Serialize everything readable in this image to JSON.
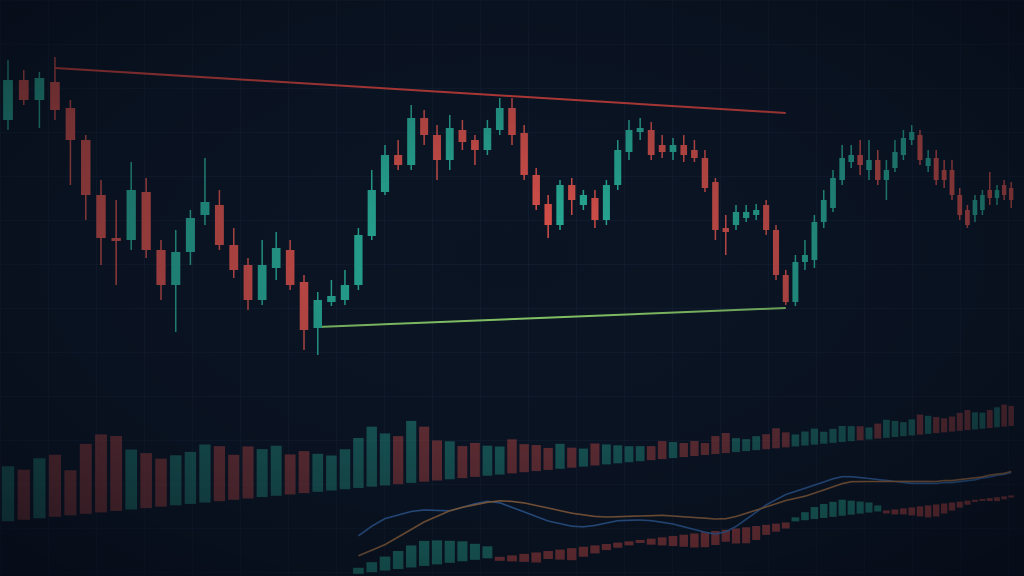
{
  "chart_data": {
    "type": "candlestick",
    "up_color": "#29b39b",
    "down_color": "#e0524a",
    "ylim": [
      0,
      360
    ],
    "open": [
      240,
      280,
      260,
      278,
      252,
      220,
      165,
      122,
      120,
      168,
      110,
      75,
      108,
      145,
      155,
      115,
      95,
      60,
      92,
      110,
      78,
      32,
      58,
      60,
      75,
      124,
      168,
      205,
      195,
      242,
      225,
      200,
      230,
      220,
      210,
      230,
      252,
      227,
      185,
      156,
      135,
      175,
      155,
      162,
      140,
      175,
      208,
      228,
      230,
      215,
      208,
      215,
      210,
      202,
      178,
      132,
      135,
      142,
      145,
      155,
      130,
      85,
      58,
      98,
      100,
      138,
      152,
      180,
      198,
      205,
      190,
      200,
      180,
      192,
      205,
      220,
      225,
      194,
      202,
      190,
      190,
      165,
      150,
      145,
      150,
      170,
      162,
      175,
      172
    ],
    "high": [
      300,
      290,
      288,
      303,
      260,
      225,
      180,
      160,
      198,
      182,
      120,
      130,
      150,
      202,
      170,
      132,
      102,
      120,
      128,
      120,
      85,
      68,
      80,
      90,
      132,
      190,
      215,
      220,
      255,
      250,
      235,
      245,
      240,
      225,
      240,
      262,
      262,
      235,
      192,
      165,
      180,
      182,
      170,
      170,
      180,
      220,
      240,
      242,
      238,
      225,
      222,
      225,
      220,
      210,
      182,
      145,
      155,
      155,
      156,
      160,
      135,
      90,
      105,
      120,
      145,
      170,
      190,
      215,
      215,
      220,
      220,
      210,
      200,
      220,
      230,
      235,
      230,
      210,
      210,
      200,
      200,
      172,
      155,
      165,
      170,
      188,
      175,
      180,
      178
    ],
    "low": [
      230,
      255,
      232,
      240,
      175,
      140,
      95,
      75,
      110,
      102,
      60,
      28,
      95,
      135,
      110,
      82,
      50,
      55,
      80,
      70,
      10,
      5,
      54,
      55,
      70,
      120,
      165,
      190,
      190,
      215,
      180,
      190,
      210,
      195,
      205,
      225,
      215,
      180,
      150,
      122,
      130,
      145,
      150,
      132,
      135,
      170,
      200,
      220,
      200,
      202,
      200,
      198,
      198,
      168,
      120,
      105,
      130,
      138,
      140,
      125,
      80,
      55,
      54,
      90,
      92,
      132,
      148,
      175,
      192,
      185,
      180,
      175,
      160,
      188,
      200,
      215,
      195,
      188,
      175,
      172,
      160,
      140,
      132,
      138,
      145,
      155,
      155,
      160,
      152
    ],
    "close": [
      280,
      260,
      282,
      250,
      220,
      165,
      122,
      119,
      170,
      110,
      75,
      108,
      142,
      158,
      115,
      90,
      60,
      95,
      112,
      75,
      30,
      60,
      64,
      75,
      125,
      170,
      205,
      195,
      242,
      225,
      200,
      232,
      218,
      210,
      232,
      252,
      225,
      185,
      155,
      135,
      175,
      160,
      165,
      140,
      175,
      210,
      230,
      232,
      205,
      208,
      215,
      205,
      202,
      172,
      130,
      128,
      148,
      148,
      150,
      130,
      85,
      58,
      98,
      105,
      138,
      160,
      182,
      202,
      205,
      195,
      200,
      180,
      190,
      208,
      222,
      228,
      200,
      202,
      180,
      180,
      165,
      145,
      135,
      160,
      165,
      162,
      170,
      165,
      160
    ],
    "volume": [
      55,
      50,
      60,
      62,
      45,
      70,
      78,
      75,
      60,
      55,
      48,
      50,
      52,
      58,
      55,
      45,
      52,
      48,
      50,
      40,
      42,
      38,
      35,
      40,
      50,
      60,
      52,
      48,
      62,
      55,
      40,
      38,
      32,
      34,
      30,
      28,
      34,
      28,
      26,
      22,
      25,
      20,
      18,
      22,
      20,
      18,
      16,
      15,
      14,
      18,
      16,
      14,
      15,
      12,
      18,
      20,
      14,
      12,
      14,
      15,
      20,
      15,
      12,
      14,
      16,
      12,
      14,
      16,
      15,
      14,
      12,
      15,
      18,
      16,
      14,
      16,
      20,
      18,
      16,
      14,
      15,
      18,
      20,
      17,
      16,
      18,
      20,
      22,
      20
    ],
    "trend_lines": [
      {
        "color": "#e8453c",
        "points": [
          [
            3,
            292
          ],
          [
            61,
            247
          ]
        ]
      },
      {
        "color": "#8fd36a",
        "points": [
          [
            21,
            33
          ],
          [
            61,
            52
          ]
        ]
      }
    ],
    "macd": {
      "macd_color": "#3f7fd0",
      "signal_color": "#d08a4a",
      "histogram": [
        null,
        null,
        null,
        null,
        null,
        null,
        null,
        null,
        null,
        null,
        null,
        null,
        null,
        null,
        null,
        null,
        null,
        null,
        null,
        null,
        null,
        null,
        null,
        null,
        6,
        10,
        14,
        18,
        22,
        25,
        24,
        22,
        20,
        16,
        12,
        -4,
        -6,
        -8,
        -10,
        -8,
        -10,
        -12,
        -10,
        -8,
        -6,
        -5,
        -4,
        -3,
        -6,
        -8,
        -10,
        -12,
        -14,
        -15,
        -14,
        -12,
        -15,
        -16,
        -14,
        -10,
        -8,
        -6,
        4,
        8,
        12,
        14,
        15,
        16,
        14,
        12,
        10,
        6,
        -3,
        -5,
        -6,
        -8,
        -10,
        -12,
        -12,
        -10,
        -8,
        -6,
        -4,
        -2,
        -2,
        -3,
        -4,
        -3,
        -2
      ],
      "macd": [
        null,
        null,
        null,
        null,
        null,
        null,
        null,
        null,
        null,
        null,
        null,
        null,
        null,
        null,
        null,
        null,
        null,
        null,
        null,
        null,
        null,
        null,
        null,
        null,
        20,
        28,
        34,
        36,
        38,
        38,
        36,
        34,
        36,
        38,
        39,
        36,
        30,
        24,
        18,
        12,
        8,
        4,
        2,
        2,
        3,
        4,
        3,
        2,
        0,
        -3,
        -6,
        -10,
        -14,
        -18,
        -21,
        -20,
        -16,
        -10,
        -4,
        2,
        6,
        10,
        12,
        14,
        16,
        18,
        20,
        21,
        20,
        18,
        16,
        14,
        12,
        10,
        8,
        6,
        5,
        4,
        3,
        3,
        2,
        2,
        2,
        2,
        3,
        3,
        4,
        4,
        5
      ],
      "signal": [
        null,
        null,
        null,
        null,
        null,
        null,
        null,
        null,
        null,
        null,
        null,
        null,
        null,
        null,
        null,
        null,
        null,
        null,
        null,
        null,
        null,
        null,
        null,
        null,
        0,
        4,
        8,
        14,
        20,
        26,
        30,
        34,
        36,
        37,
        38,
        38,
        36,
        33,
        29,
        25,
        21,
        17,
        14,
        11,
        9,
        8,
        7,
        6,
        5,
        4,
        2,
        0,
        -2,
        -4,
        -6,
        -7,
        -6,
        -4,
        -2,
        0,
        2,
        4,
        5,
        6,
        8,
        10,
        12,
        14,
        15,
        14,
        13,
        12,
        11,
        10,
        9,
        8,
        7,
        6,
        5,
        5,
        4,
        4,
        4,
        4,
        4,
        5,
        5,
        5,
        6
      ]
    }
  }
}
